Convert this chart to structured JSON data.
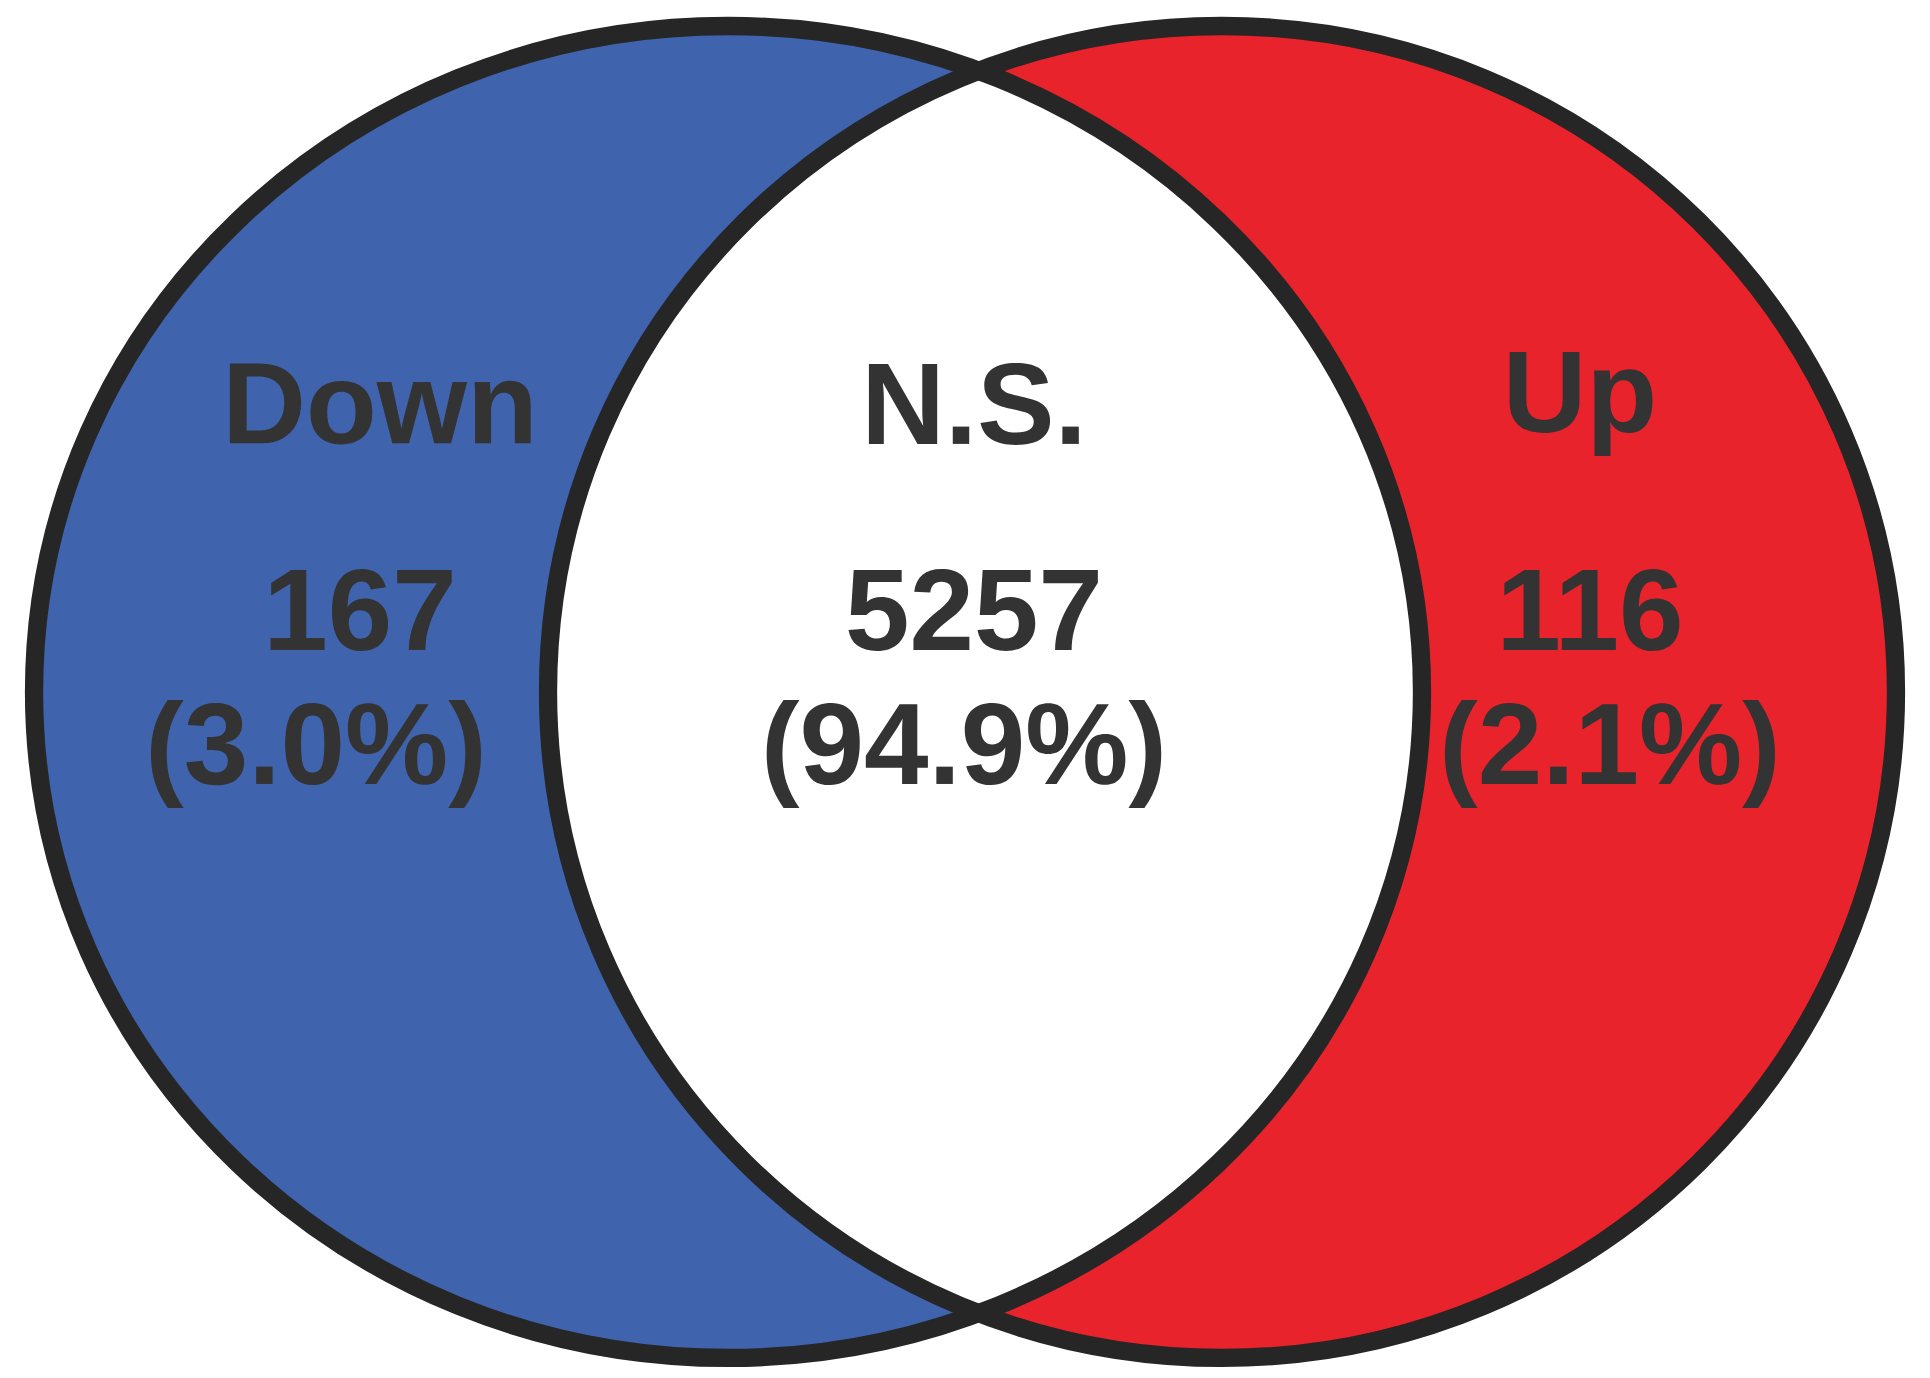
{
  "chart_data": {
    "type": "other",
    "categories": [
      "Down",
      "N.S.",
      "Up"
    ],
    "values": [
      167,
      5257,
      116
    ],
    "data_labels": true,
    "annotations": [
      "(3.0%)",
      "(94.9%)",
      "(2.1%)"
    ],
    "colors": [
      "#3f63ad",
      "#ffffff",
      "#e8232b"
    ]
  }
}
